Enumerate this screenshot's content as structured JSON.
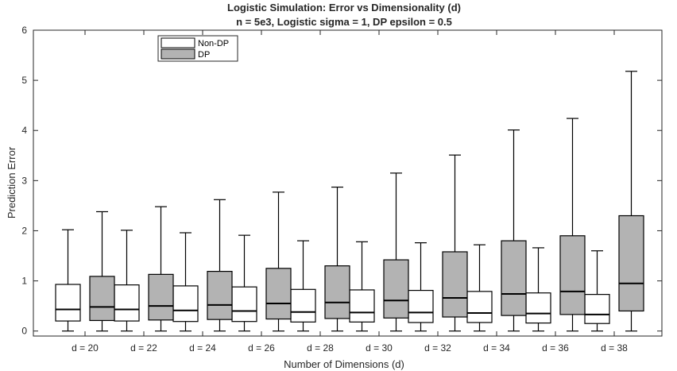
{
  "chart_data": {
    "type": "boxplot",
    "title": "Logistic Simulation: Error vs Dimensionality (d)",
    "subtitle": "n = 5e3, Logistic sigma = 1, DP epsilon = 0.5",
    "xlabel": "Number of Dimensions (d)",
    "ylabel": "Prediction Error",
    "ylim": [
      -0.1,
      6
    ],
    "yticks": [
      0,
      1,
      2,
      3,
      4,
      5,
      6
    ],
    "grid": false,
    "legend_position": "top-left",
    "categories": [
      "d = 20",
      "d = 22",
      "d = 24",
      "d = 26",
      "d = 28",
      "d = 30",
      "d = 32",
      "d = 34",
      "d = 36",
      "d = 38"
    ],
    "series": [
      {
        "name": "Non-DP",
        "color": "#ffffff",
        "boxes": [
          {
            "min": 0,
            "q1": 0.2,
            "median": 0.43,
            "q3": 0.93,
            "max": 2.02
          },
          {
            "min": 0,
            "q1": 0.2,
            "median": 0.43,
            "q3": 0.92,
            "max": 2.01
          },
          {
            "min": 0,
            "q1": 0.19,
            "median": 0.41,
            "q3": 0.9,
            "max": 1.96
          },
          {
            "min": 0,
            "q1": 0.19,
            "median": 0.4,
            "q3": 0.88,
            "max": 1.91
          },
          {
            "min": 0,
            "q1": 0.18,
            "median": 0.38,
            "q3": 0.83,
            "max": 1.8
          },
          {
            "min": 0,
            "q1": 0.18,
            "median": 0.37,
            "q3": 0.82,
            "max": 1.78
          },
          {
            "min": 0,
            "q1": 0.17,
            "median": 0.37,
            "q3": 0.81,
            "max": 1.76
          },
          {
            "min": 0,
            "q1": 0.17,
            "median": 0.36,
            "q3": 0.79,
            "max": 1.72
          },
          {
            "min": 0,
            "q1": 0.16,
            "median": 0.35,
            "q3": 0.76,
            "max": 1.66
          },
          {
            "min": 0,
            "q1": 0.15,
            "median": 0.33,
            "q3": 0.73,
            "max": 1.6
          }
        ]
      },
      {
        "name": "DP",
        "color": "#b3b3b3",
        "boxes": [
          {
            "min": 0,
            "q1": 0.21,
            "median": 0.48,
            "q3": 1.09,
            "max": 2.38
          },
          {
            "min": 0,
            "q1": 0.22,
            "median": 0.5,
            "q3": 1.13,
            "max": 2.48
          },
          {
            "min": 0,
            "q1": 0.23,
            "median": 0.52,
            "q3": 1.19,
            "max": 2.62
          },
          {
            "min": 0,
            "q1": 0.24,
            "median": 0.55,
            "q3": 1.25,
            "max": 2.77
          },
          {
            "min": 0,
            "q1": 0.25,
            "median": 0.57,
            "q3": 1.3,
            "max": 2.87
          },
          {
            "min": 0,
            "q1": 0.26,
            "median": 0.61,
            "q3": 1.42,
            "max": 3.15
          },
          {
            "min": 0,
            "q1": 0.28,
            "median": 0.66,
            "q3": 1.58,
            "max": 3.51
          },
          {
            "min": 0,
            "q1": 0.31,
            "median": 0.74,
            "q3": 1.8,
            "max": 4.01
          },
          {
            "min": 0,
            "q1": 0.33,
            "median": 0.79,
            "q3": 1.9,
            "max": 4.24
          },
          {
            "min": 0,
            "q1": 0.4,
            "median": 0.95,
            "q3": 2.3,
            "max": 5.18
          }
        ]
      }
    ]
  }
}
